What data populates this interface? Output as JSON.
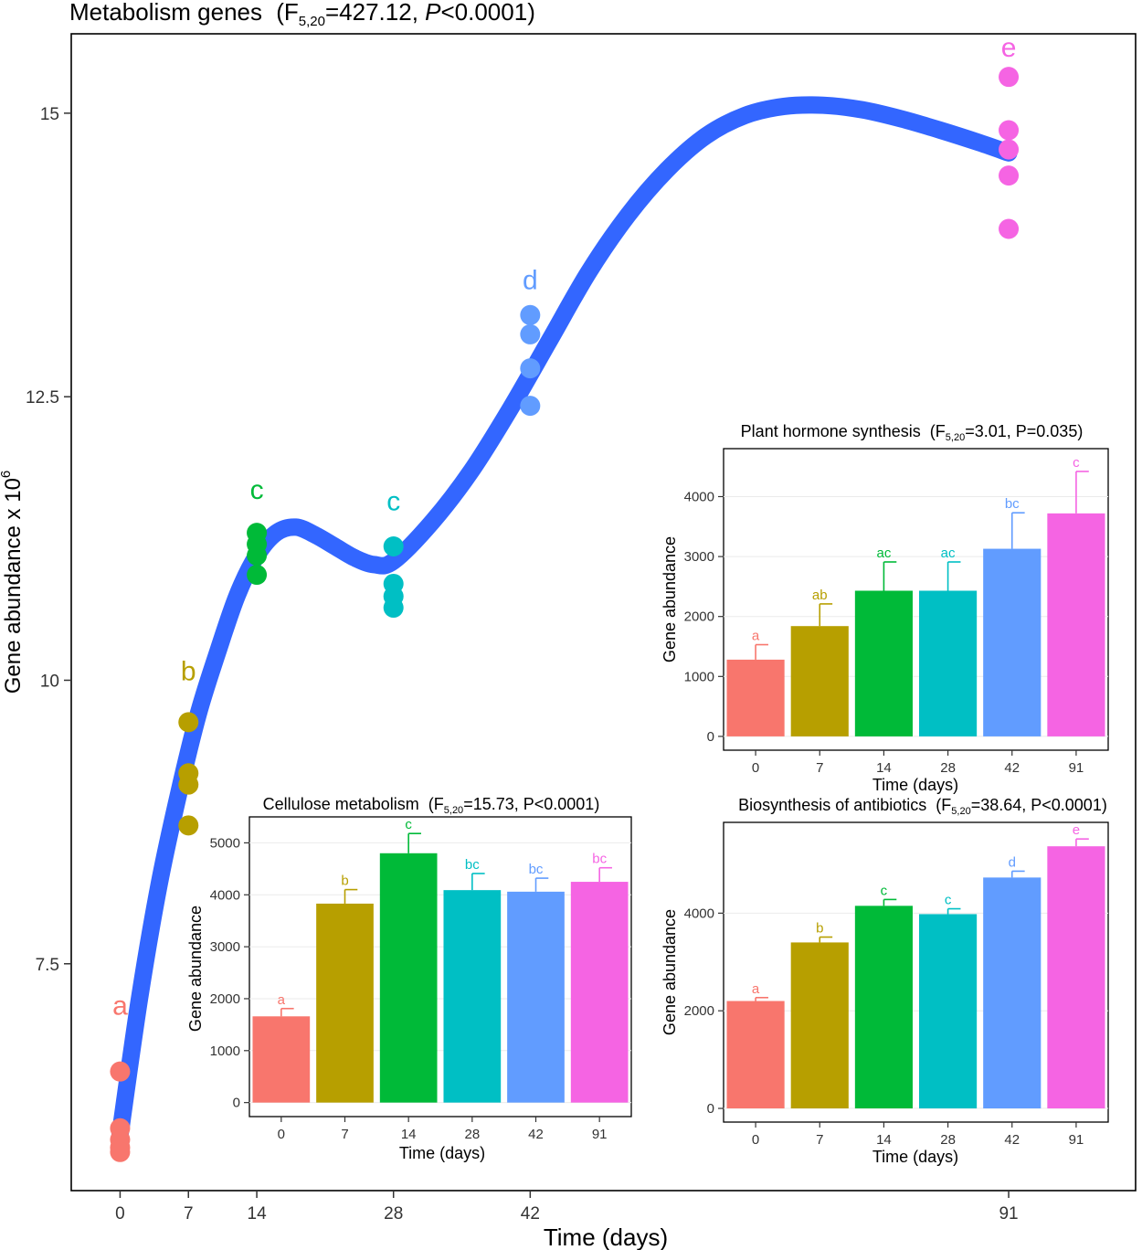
{
  "chart_data": [
    {
      "type": "scatter",
      "title": "Metabolism genes",
      "stat": {
        "lead": "(F",
        "sub": "5,20",
        "eq": "=427.12, ",
        "p_label": "P",
        "p_value": "<0.0001)"
      },
      "xlabel": "Time (days)",
      "ylabel": "Gene abundance x 10",
      "ylabel_exp": "6",
      "xticks": [
        0,
        7,
        14,
        28,
        42,
        91
      ],
      "xtick_labels": [
        "0",
        "7",
        "14",
        "28",
        "42",
        "91"
      ],
      "xlim": [
        -5,
        104
      ],
      "yticks": [
        7.5,
        10,
        12.5,
        15
      ],
      "ytick_labels": [
        "7.5",
        "10",
        "12.5",
        "15"
      ],
      "ylim": [
        5.5,
        15.7
      ],
      "groups": [
        {
          "day": 0,
          "color": "#F8766D",
          "letter": "a",
          "letter_y": 7.05,
          "values": [
            6.55,
            6.05,
            5.95,
            5.88,
            5.84
          ]
        },
        {
          "day": 7,
          "color": "#B79F00",
          "letter": "b",
          "letter_y": 10.0,
          "values": [
            9.63,
            9.18,
            9.08,
            8.72
          ]
        },
        {
          "day": 14,
          "color": "#00BA38",
          "letter": "c",
          "letter_y": 11.6,
          "values": [
            11.3,
            11.2,
            11.1,
            10.93
          ]
        },
        {
          "day": 28,
          "color": "#00BFC4",
          "letter": "c",
          "letter_y": 11.5,
          "values": [
            11.18,
            10.85,
            10.74,
            10.64
          ]
        },
        {
          "day": 42,
          "color": "#619CFF",
          "letter": "d",
          "letter_y": 13.45,
          "values": [
            13.22,
            13.05,
            12.75,
            12.42
          ]
        },
        {
          "day": 91,
          "color": "#F564E3",
          "letter": "e",
          "letter_y": 15.5,
          "values": [
            15.32,
            14.85,
            14.68,
            14.45,
            13.98
          ]
        }
      ],
      "trend": {
        "color": "#3366FF",
        "x": [
          0,
          2,
          4,
          6,
          8,
          10,
          12,
          14,
          16,
          18,
          20,
          22,
          24,
          26,
          28,
          32,
          36,
          40,
          44,
          48,
          52,
          56,
          60,
          64,
          68,
          72,
          76,
          80,
          84,
          88,
          91
        ],
        "y": [
          6.0,
          7.2,
          8.2,
          9.0,
          9.7,
          10.25,
          10.75,
          11.1,
          11.3,
          11.35,
          11.28,
          11.18,
          11.08,
          11.02,
          11.05,
          11.4,
          11.85,
          12.4,
          13.0,
          13.6,
          14.1,
          14.5,
          14.8,
          14.98,
          15.06,
          15.07,
          15.03,
          14.95,
          14.85,
          14.74,
          14.65
        ]
      }
    },
    {
      "type": "bar",
      "title": "Cellulose metabolism",
      "stat": {
        "lead": "(F",
        "sub": "5,20",
        "rest": "=15.73, P<0.0001)"
      },
      "categories": [
        "0",
        "7",
        "14",
        "28",
        "42",
        "91"
      ],
      "values": [
        1660,
        3830,
        4800,
        4090,
        4060,
        4250
      ],
      "errors": [
        150,
        270,
        380,
        320,
        260,
        270
      ],
      "letters": [
        "a",
        "b",
        "c",
        "bc",
        "bc",
        "bc"
      ],
      "colors": [
        "#F8766D",
        "#B79F00",
        "#00BA38",
        "#00BFC4",
        "#619CFF",
        "#F564E3"
      ],
      "xlabel": "Time (days)",
      "ylabel": "Gene abundance",
      "yticks": [
        0,
        1000,
        2000,
        3000,
        4000,
        5000
      ],
      "ytick_labels": [
        "0",
        "1000",
        "2000",
        "3000",
        "4000",
        "5000"
      ],
      "ylim": [
        -270,
        5500
      ]
    },
    {
      "type": "bar",
      "title": "Plant hormone synthesis",
      "stat": {
        "lead": "(F",
        "sub": "5,20",
        "rest": "=3.01, P=0.035)"
      },
      "categories": [
        "0",
        "7",
        "14",
        "28",
        "42",
        "91"
      ],
      "values": [
        1280,
        1840,
        2430,
        2430,
        3130,
        3720
      ],
      "errors": [
        250,
        370,
        480,
        480,
        600,
        700
      ],
      "letters": [
        "a",
        "ab",
        "ac",
        "ac",
        "bc",
        "c"
      ],
      "colors": [
        "#F8766D",
        "#B79F00",
        "#00BA38",
        "#00BFC4",
        "#619CFF",
        "#F564E3"
      ],
      "xlabel": "Time (days)",
      "ylabel": "Gene abundance",
      "yticks": [
        0,
        1000,
        2000,
        3000,
        4000
      ],
      "ytick_labels": [
        "0",
        "1000",
        "2000",
        "3000",
        "4000"
      ],
      "ylim": [
        -230,
        4800
      ]
    },
    {
      "type": "bar",
      "title": "Biosynthesis of antibiotics",
      "stat": {
        "lead": "(F",
        "sub": "5,20",
        "rest": "=38.64, P<0.0001)"
      },
      "categories": [
        "0",
        "7",
        "14",
        "28",
        "42",
        "91"
      ],
      "values": [
        2200,
        3400,
        4150,
        3980,
        4730,
        5370
      ],
      "errors": [
        70,
        110,
        130,
        110,
        130,
        150
      ],
      "letters": [
        "a",
        "b",
        "c",
        "c",
        "d",
        "e"
      ],
      "colors": [
        "#F8766D",
        "#B79F00",
        "#00BA38",
        "#00BFC4",
        "#619CFF",
        "#F564E3"
      ],
      "xlabel": "Time (days)",
      "ylabel": "Gene abundance",
      "yticks": [
        0,
        2000,
        4000
      ],
      "ytick_labels": [
        "0",
        "2000",
        "4000"
      ],
      "ylim": [
        -280,
        5860
      ]
    }
  ]
}
